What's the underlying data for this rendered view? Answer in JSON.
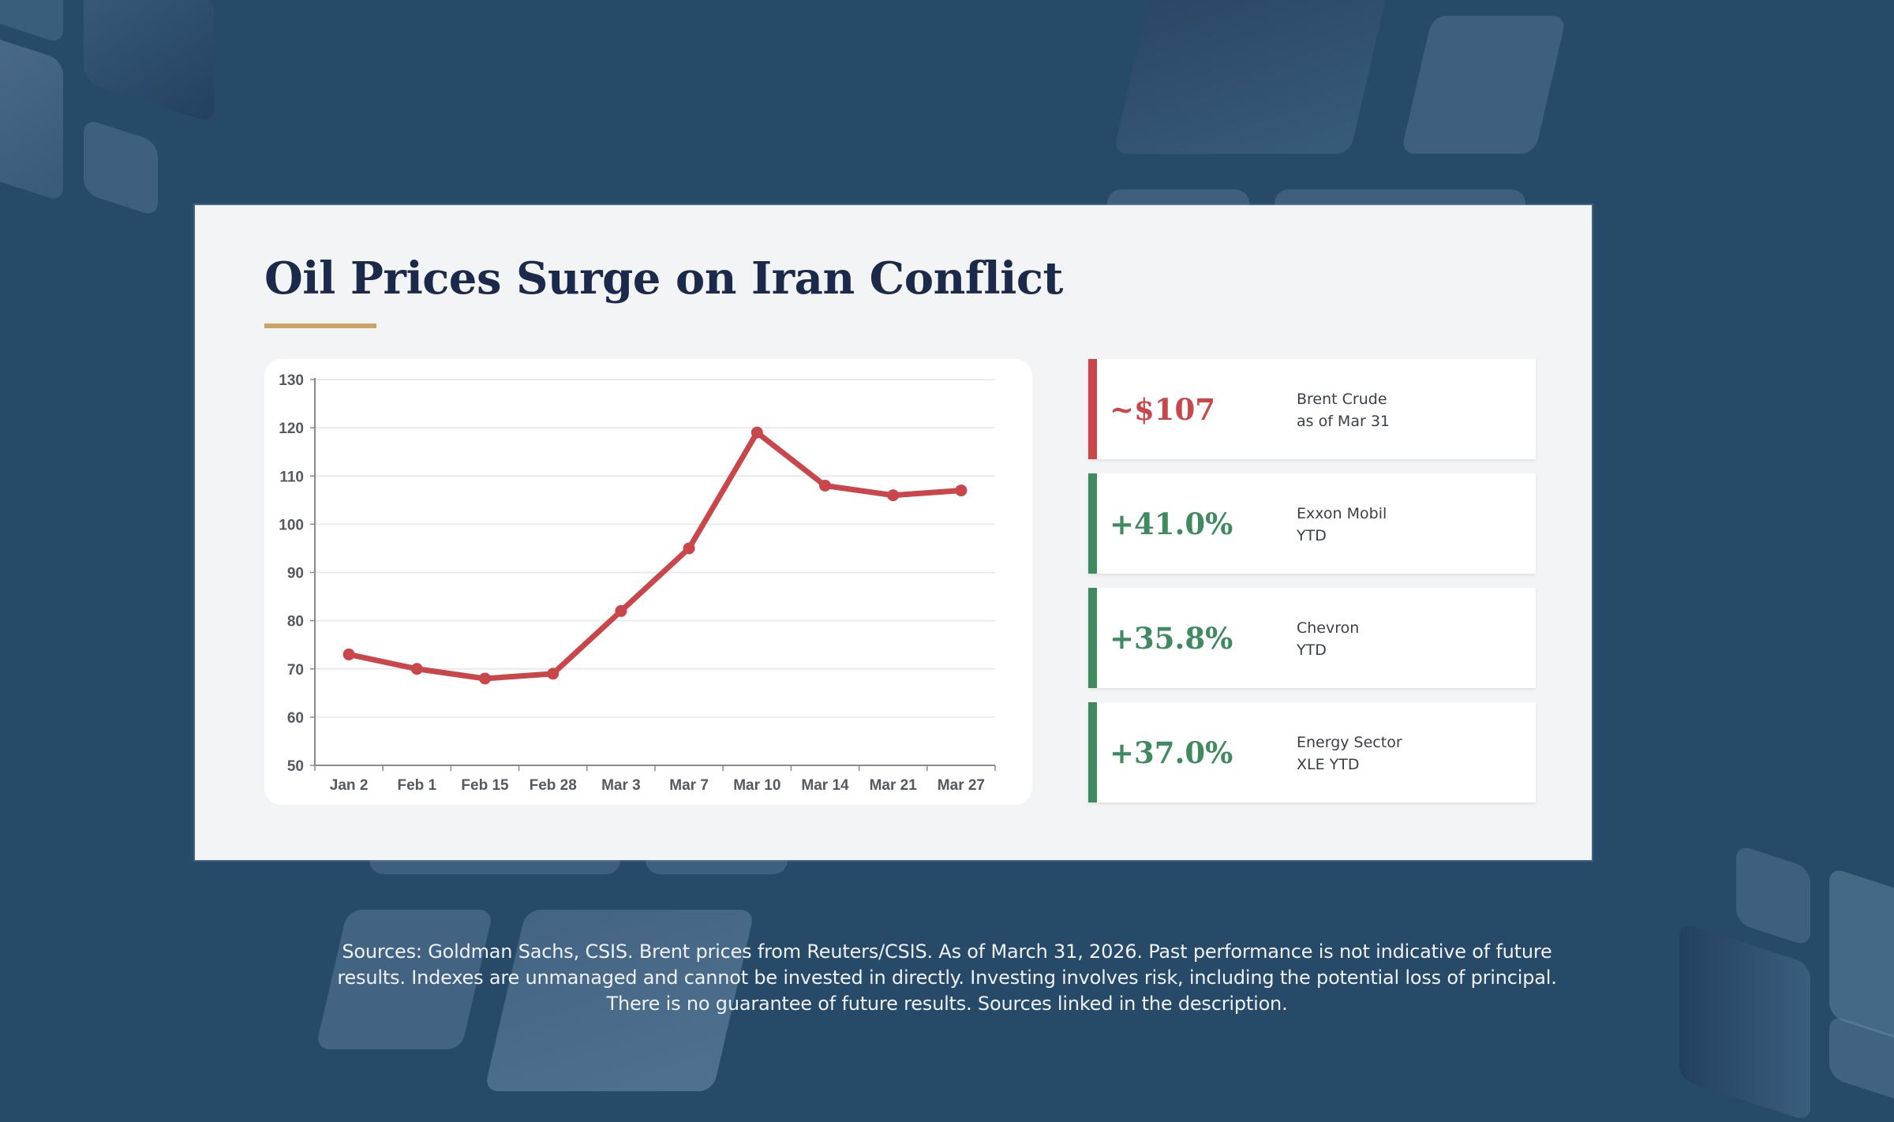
{
  "slide": {
    "title": "Oil Prices Surge on Iran Conflict",
    "accent_colors": {
      "background": "#264a68",
      "title": "#1b2a4a",
      "underline": "#c9a564",
      "negative_red": "#c9474b",
      "positive_green": "#3f8a5e"
    }
  },
  "chart_data": {
    "type": "line",
    "title": "",
    "xlabel": "",
    "ylabel": "",
    "categories": [
      "Jan 2",
      "Feb 1",
      "Feb 15",
      "Feb 28",
      "Mar 3",
      "Mar 7",
      "Mar 10",
      "Mar 14",
      "Mar 21",
      "Mar 27"
    ],
    "series": [
      {
        "name": "Brent Crude ($/bbl)",
        "color": "#c9474b",
        "values": [
          73,
          70,
          68,
          69,
          82,
          95,
          119,
          108,
          106,
          107
        ]
      }
    ],
    "ylim": [
      50,
      130
    ],
    "yticks": [
      50,
      60,
      70,
      80,
      90,
      100,
      110,
      120,
      130
    ],
    "grid": true,
    "legend": "none"
  },
  "stats": [
    {
      "value": "~$107",
      "label_line1": "Brent Crude",
      "label_line2": "as of Mar 31",
      "tone": "negative",
      "color": "#c9474b"
    },
    {
      "value": "+41.0%",
      "label_line1": "Exxon Mobil",
      "label_line2": "YTD",
      "tone": "positive",
      "color": "#3f8a5e"
    },
    {
      "value": "+35.8%",
      "label_line1": "Chevron",
      "label_line2": "YTD",
      "tone": "positive",
      "color": "#3f8a5e"
    },
    {
      "value": "+37.0%",
      "label_line1": "Energy Sector",
      "label_line2": "XLE YTD",
      "tone": "positive",
      "color": "#3f8a5e"
    }
  ],
  "footer": {
    "lines": [
      "Sources: Goldman Sachs, CSIS. Brent prices from Reuters/CSIS. As of March 31, 2026. Past performance is not indicative of future",
      "results. Indexes are unmanaged and cannot be invested in directly. Investing involves risk, including the potential loss of principal.",
      "There is no guarantee of future results. Sources linked in the description."
    ]
  }
}
